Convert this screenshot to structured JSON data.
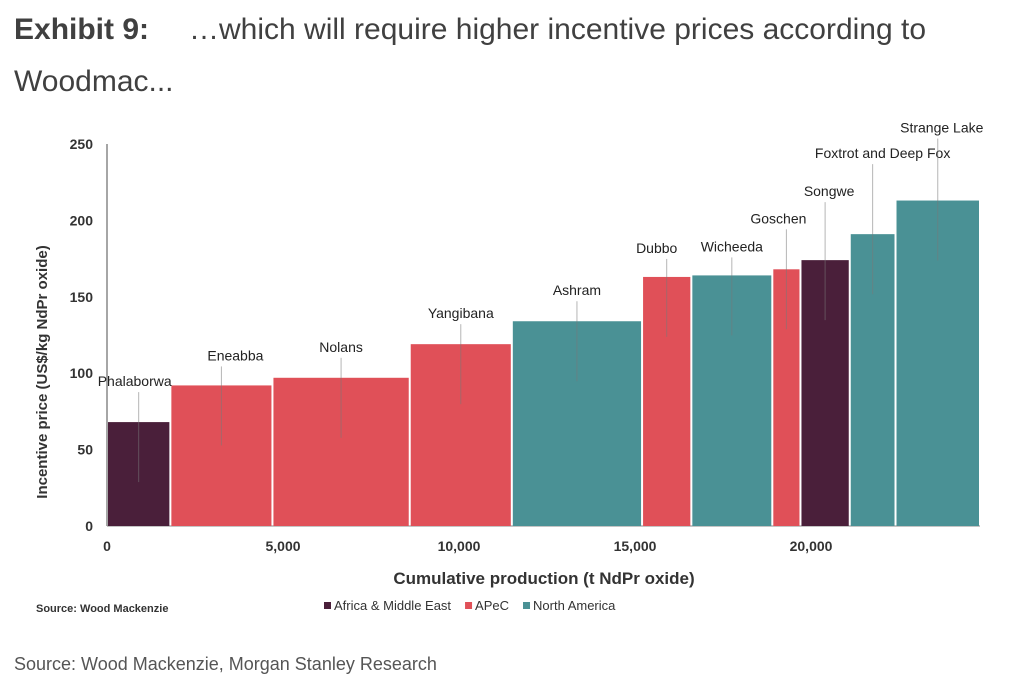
{
  "header": {
    "label": "Exhibit 9:",
    "title": "…which will require higher incentive prices according to Woodmac..."
  },
  "footer": {
    "source": "Source: Wood Mackenzie, Morgan Stanley Research"
  },
  "chart_data": {
    "type": "bar",
    "subtype": "cost-curve (variable-width bars)",
    "xlabel": "Cumulative production (t NdPr oxide)",
    "ylabel": "Incentive price (US$/kg NdPr oxide)",
    "xlim": [
      0,
      24800
    ],
    "ylim": [
      0,
      250
    ],
    "xticks": [
      0,
      5000,
      10000,
      15000,
      20000
    ],
    "xtick_labels": [
      "0",
      "5,000",
      "10,000",
      "15,000",
      "20,000"
    ],
    "yticks": [
      0,
      50,
      100,
      150,
      200,
      250
    ],
    "ytick_labels": [
      "0",
      "50",
      "100",
      "150",
      "200",
      "250"
    ],
    "grid": false,
    "source_note": "Source: Wood Mackenzie",
    "legend": {
      "placement": "bottom",
      "entries": [
        {
          "name": "Africa & Middle East",
          "color": "#4a1f3a"
        },
        {
          "name": "APeC",
          "color": "#e05058"
        },
        {
          "name": "North America",
          "color": "#4a9195"
        }
      ]
    },
    "series": [
      {
        "name": "Phalaborwa",
        "region": "Africa & Middle East",
        "x_start": 0,
        "x_end": 1800,
        "value": 68
      },
      {
        "name": "Eneabba",
        "region": "APeC",
        "x_start": 1800,
        "x_end": 4700,
        "value": 92
      },
      {
        "name": "Nolans",
        "region": "APeC",
        "x_start": 4700,
        "x_end": 8600,
        "value": 97
      },
      {
        "name": "Yangibana",
        "region": "APeC",
        "x_start": 8600,
        "x_end": 11500,
        "value": 119
      },
      {
        "name": "Ashram",
        "region": "North America",
        "x_start": 11500,
        "x_end": 15200,
        "value": 134
      },
      {
        "name": "Dubbo",
        "region": "APeC",
        "x_start": 15200,
        "x_end": 16600,
        "value": 163
      },
      {
        "name": "Wicheeda",
        "region": "North America",
        "x_start": 16600,
        "x_end": 18900,
        "value": 164
      },
      {
        "name": "Goschen",
        "region": "APeC",
        "x_start": 18900,
        "x_end": 19700,
        "value": 168
      },
      {
        "name": "Songwe",
        "region": "Africa & Middle East",
        "x_start": 19700,
        "x_end": 21100,
        "value": 174
      },
      {
        "name": "Foxtrot and Deep Fox",
        "region": "North America",
        "x_start": 21100,
        "x_end": 22400,
        "value": 191
      },
      {
        "name": "Strange Lake",
        "region": "North America",
        "x_start": 22400,
        "x_end": 24800,
        "value": 213
      }
    ]
  }
}
